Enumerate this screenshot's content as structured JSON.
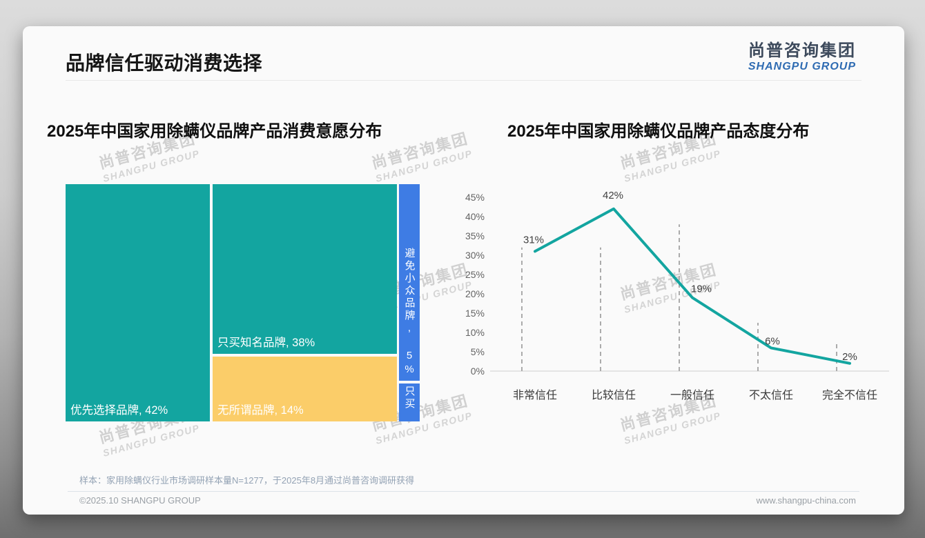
{
  "header": {
    "title": "品牌信任驱动消费选择",
    "logo_cn": "尚普咨询集团",
    "logo_en": "SHANGPU GROUP"
  },
  "watermark": {
    "line1": "尚普咨询集团",
    "line2": "SHANGPU GROUP"
  },
  "colors": {
    "teal": "#13A5A0",
    "yellow": "#FBCD69",
    "blue": "#3E7CE4",
    "dashed_line": "#ABABAB",
    "axis_line": "#CDCDCD",
    "logo_cn": "#3D4A5C",
    "logo_en": "#2E6BB2"
  },
  "chart_data": [
    {
      "type": "treemap",
      "title": "2025年中国家用除螨仪品牌产品消费意愿分布",
      "unit": "%",
      "items": [
        {
          "name": "优先选择品牌",
          "value": 42,
          "label": "优先选择品牌, 42%",
          "color": "teal"
        },
        {
          "name": "只买知名品牌",
          "value": 38,
          "label": "只买知名品牌, 38%",
          "color": "teal"
        },
        {
          "name": "无所谓品牌",
          "value": 14,
          "label": "无所谓品牌, 14%",
          "color": "yellow"
        },
        {
          "name": "避免小众品牌",
          "value": 5,
          "label": "避免小众品牌, 5%",
          "color": "blue",
          "label_orientation": "vertical"
        },
        {
          "name": "只买…",
          "value": 1,
          "label": "只买",
          "color": "blue",
          "label_orientation": "vertical",
          "label_clipped": true
        }
      ]
    },
    {
      "type": "line",
      "title": "2025年中国家用除螨仪品牌产品态度分布",
      "categories": [
        "非常信任",
        "比较信任",
        "一般信任",
        "不太信任",
        "完全不信任"
      ],
      "values": [
        31,
        42,
        19,
        6,
        2
      ],
      "point_labels": [
        "31%",
        "42%",
        "19%",
        "6%",
        "2%"
      ],
      "ylim": [
        0,
        45
      ],
      "ytick_step": 5,
      "ytick_suffix": "%",
      "grid": "vertical dashed droplines, no horizontal gridlines",
      "dropline_top_pct": [
        32,
        32,
        38,
        12.5,
        7
      ],
      "legend": "none"
    }
  ],
  "footer": {
    "sample_note": "样本：家用除螨仪行业市场调研样本量N=1277，于2025年8月通过尚普咨询调研获得",
    "copyright": "©2025.10 SHANGPU GROUP",
    "website": "www.shangpu-china.com"
  }
}
